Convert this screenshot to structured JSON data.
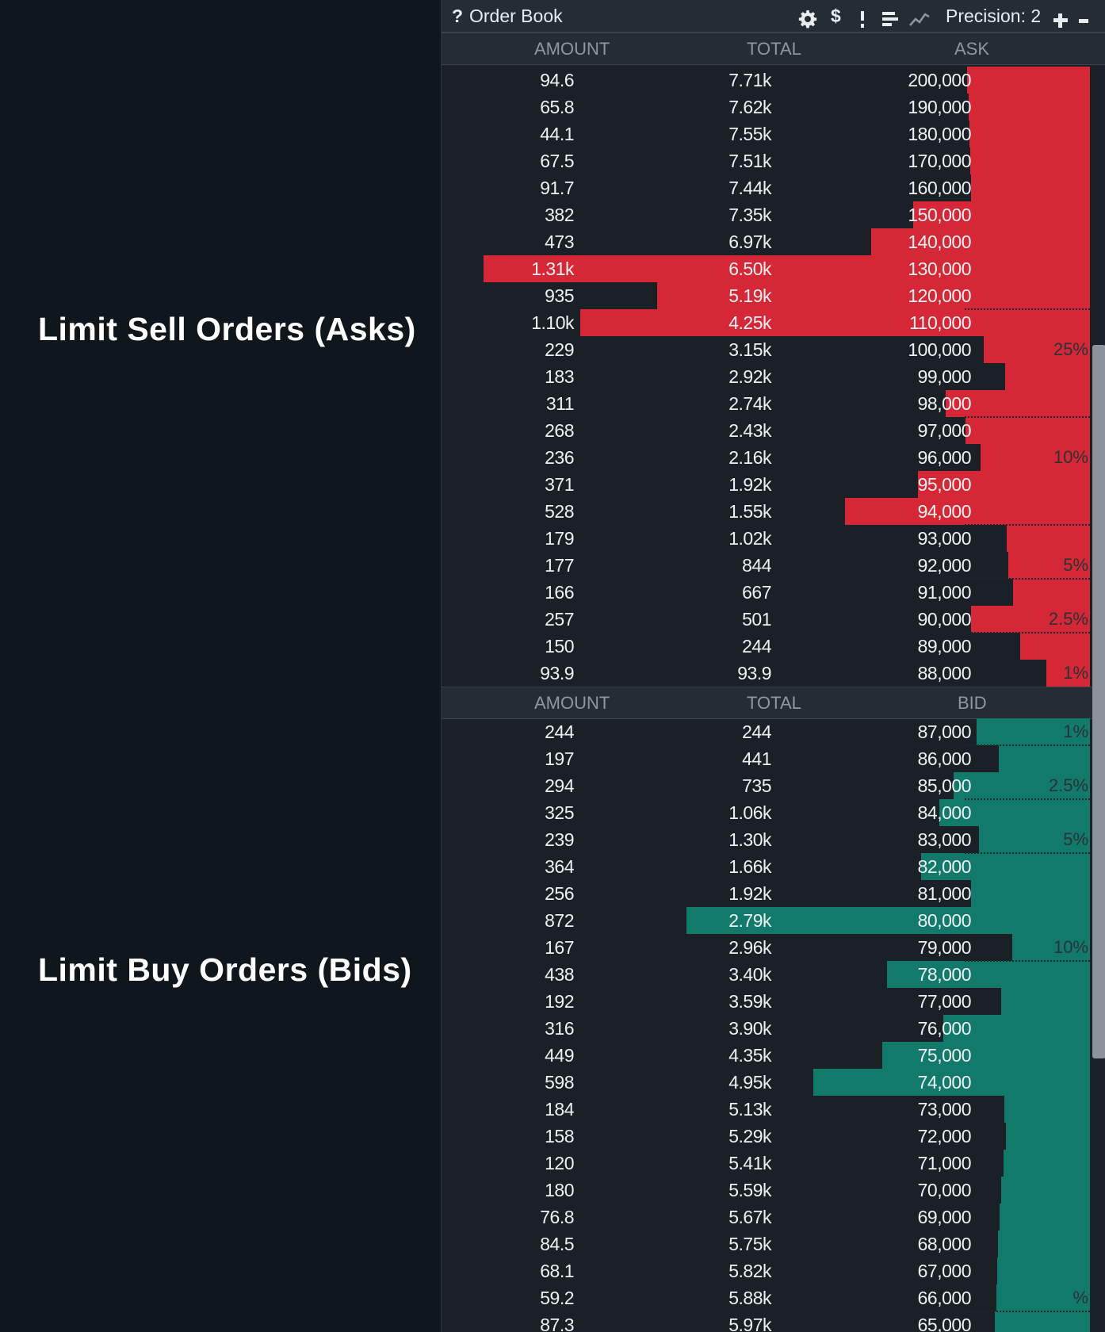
{
  "annotations": {
    "asks_label": "Limit Sell Orders (Asks)",
    "bids_label": "Limit Buy Orders (Bids)"
  },
  "toolbar": {
    "help_label": "?",
    "title": "Order Book",
    "dollar_label": "$",
    "precision_label": "Precision: 2",
    "icons": [
      "settings-gear-icon",
      "dollar-icon",
      "more-vertical-icon",
      "bars-icon",
      "depth-chart-icon",
      "plus-icon",
      "minus-icon"
    ]
  },
  "colors": {
    "ask": "#d52735",
    "bid": "#127a6a",
    "background": "#1a2026"
  },
  "asks_header": {
    "amount": "AMOUNT",
    "total": "TOTAL",
    "price": "ASK"
  },
  "bids_header": {
    "amount": "AMOUNT",
    "total": "TOTAL",
    "price": "BID"
  },
  "asks": [
    {
      "amount": "94.6",
      "total": "7.71k",
      "price": "200,000",
      "amount_num": 94.6,
      "total_num": 7710
    },
    {
      "amount": "65.8",
      "total": "7.62k",
      "price": "190,000",
      "amount_num": 65.8,
      "total_num": 7620
    },
    {
      "amount": "44.1",
      "total": "7.55k",
      "price": "180,000",
      "amount_num": 44.1,
      "total_num": 7550
    },
    {
      "amount": "67.5",
      "total": "7.51k",
      "price": "170,000",
      "amount_num": 67.5,
      "total_num": 7510
    },
    {
      "amount": "91.7",
      "total": "7.44k",
      "price": "160,000",
      "amount_num": 91.7,
      "total_num": 7440
    },
    {
      "amount": "382",
      "total": "7.35k",
      "price": "150,000",
      "amount_num": 382,
      "total_num": 7350
    },
    {
      "amount": "473",
      "total": "6.97k",
      "price": "140,000",
      "amount_num": 473,
      "total_num": 6970
    },
    {
      "amount": "1.31k",
      "total": "6.50k",
      "price": "130,000",
      "amount_num": 1310,
      "total_num": 6500
    },
    {
      "amount": "935",
      "total": "5.19k",
      "price": "120,000",
      "amount_num": 935,
      "total_num": 5190
    },
    {
      "amount": "1.10k",
      "total": "4.25k",
      "price": "110,000",
      "amount_num": 1100,
      "total_num": 4250
    },
    {
      "amount": "229",
      "total": "3.15k",
      "price": "100,000",
      "amount_num": 229,
      "total_num": 3150
    },
    {
      "amount": "183",
      "total": "2.92k",
      "price": "99,000",
      "amount_num": 183,
      "total_num": 2920
    },
    {
      "amount": "311",
      "total": "2.74k",
      "price": "98,000",
      "amount_num": 311,
      "total_num": 2740
    },
    {
      "amount": "268",
      "total": "2.43k",
      "price": "97,000",
      "amount_num": 268,
      "total_num": 2430
    },
    {
      "amount": "236",
      "total": "2.16k",
      "price": "96,000",
      "amount_num": 236,
      "total_num": 2160
    },
    {
      "amount": "371",
      "total": "1.92k",
      "price": "95,000",
      "amount_num": 371,
      "total_num": 1920
    },
    {
      "amount": "528",
      "total": "1.55k",
      "price": "94,000",
      "amount_num": 528,
      "total_num": 1550
    },
    {
      "amount": "179",
      "total": "1.02k",
      "price": "93,000",
      "amount_num": 179,
      "total_num": 1020
    },
    {
      "amount": "177",
      "total": "844",
      "price": "92,000",
      "amount_num": 177,
      "total_num": 844
    },
    {
      "amount": "166",
      "total": "667",
      "price": "91,000",
      "amount_num": 166,
      "total_num": 667
    },
    {
      "amount": "257",
      "total": "501",
      "price": "90,000",
      "amount_num": 257,
      "total_num": 501
    },
    {
      "amount": "150",
      "total": "244",
      "price": "89,000",
      "amount_num": 150,
      "total_num": 244
    },
    {
      "amount": "93.9",
      "total": "93.9",
      "price": "88,000",
      "amount_num": 93.9,
      "total_num": 93.9
    }
  ],
  "bids": [
    {
      "amount": "244",
      "total": "244",
      "price": "87,000",
      "amount_num": 244,
      "total_num": 244
    },
    {
      "amount": "197",
      "total": "441",
      "price": "86,000",
      "amount_num": 197,
      "total_num": 441
    },
    {
      "amount": "294",
      "total": "735",
      "price": "85,000",
      "amount_num": 294,
      "total_num": 735
    },
    {
      "amount": "325",
      "total": "1.06k",
      "price": "84,000",
      "amount_num": 325,
      "total_num": 1060
    },
    {
      "amount": "239",
      "total": "1.30k",
      "price": "83,000",
      "amount_num": 239,
      "total_num": 1300
    },
    {
      "amount": "364",
      "total": "1.66k",
      "price": "82,000",
      "amount_num": 364,
      "total_num": 1660
    },
    {
      "amount": "256",
      "total": "1.92k",
      "price": "81,000",
      "amount_num": 256,
      "total_num": 1920
    },
    {
      "amount": "872",
      "total": "2.79k",
      "price": "80,000",
      "amount_num": 872,
      "total_num": 2790
    },
    {
      "amount": "167",
      "total": "2.96k",
      "price": "79,000",
      "amount_num": 167,
      "total_num": 2960
    },
    {
      "amount": "438",
      "total": "3.40k",
      "price": "78,000",
      "amount_num": 438,
      "total_num": 3400
    },
    {
      "amount": "192",
      "total": "3.59k",
      "price": "77,000",
      "amount_num": 192,
      "total_num": 3590
    },
    {
      "amount": "316",
      "total": "3.90k",
      "price": "76,000",
      "amount_num": 316,
      "total_num": 3900
    },
    {
      "amount": "449",
      "total": "4.35k",
      "price": "75,000",
      "amount_num": 449,
      "total_num": 4350
    },
    {
      "amount": "598",
      "total": "4.95k",
      "price": "74,000",
      "amount_num": 598,
      "total_num": 4950
    },
    {
      "amount": "184",
      "total": "5.13k",
      "price": "73,000",
      "amount_num": 184,
      "total_num": 5130
    },
    {
      "amount": "158",
      "total": "5.29k",
      "price": "72,000",
      "amount_num": 158,
      "total_num": 5290
    },
    {
      "amount": "120",
      "total": "5.41k",
      "price": "71,000",
      "amount_num": 120,
      "total_num": 5410
    },
    {
      "amount": "180",
      "total": "5.59k",
      "price": "70,000",
      "amount_num": 180,
      "total_num": 5590
    },
    {
      "amount": "76.8",
      "total": "5.67k",
      "price": "69,000",
      "amount_num": 76.8,
      "total_num": 5670
    },
    {
      "amount": "84.5",
      "total": "5.75k",
      "price": "68,000",
      "amount_num": 84.5,
      "total_num": 5750
    },
    {
      "amount": "68.1",
      "total": "5.82k",
      "price": "67,000",
      "amount_num": 68.1,
      "total_num": 5820
    },
    {
      "amount": "59.2",
      "total": "5.88k",
      "price": "66,000",
      "amount_num": 59.2,
      "total_num": 5880
    },
    {
      "amount": "87.3",
      "total": "5.97k",
      "price": "65,000",
      "amount_num": 87.3,
      "total_num": 5970
    }
  ],
  "ask_depth_markers": [
    {
      "label": "25%",
      "after_row": 9
    },
    {
      "label": "10%",
      "after_row": 13
    },
    {
      "label": "5%",
      "after_row": 17
    },
    {
      "label": "2.5%",
      "after_row": 19
    },
    {
      "label": "1%",
      "after_row": 21
    }
  ],
  "bid_depth_markers": [
    {
      "label": "1%",
      "after_row": 0
    },
    {
      "label": "2.5%",
      "after_row": 2
    },
    {
      "label": "5%",
      "after_row": 4
    },
    {
      "label": "10%",
      "after_row": 8
    },
    {
      "label": "%",
      "after_row": 21
    }
  ]
}
